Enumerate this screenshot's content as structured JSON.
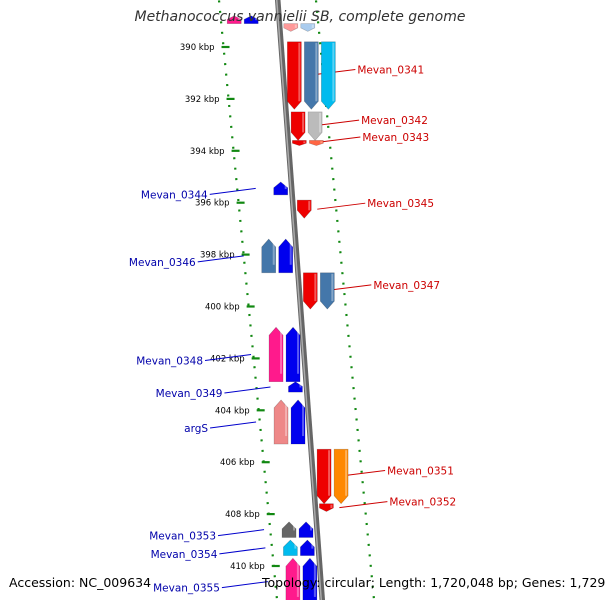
{
  "title": "Methanococcus vannielii SB, complete genome",
  "footer": {
    "accession": "Accession: NC_009634",
    "summary": "Topology: circular; Length: 1,720,048 bp; Genes: 1,729"
  },
  "scale": {
    "unit": "kbp",
    "ticks": [
      {
        "kbp": 390,
        "label": "390 kbp"
      },
      {
        "kbp": 392,
        "label": "392 kbp"
      },
      {
        "kbp": 394,
        "label": "394 kbp"
      },
      {
        "kbp": 396,
        "label": "396 kbp"
      },
      {
        "kbp": 398,
        "label": "398 kbp"
      },
      {
        "kbp": 400,
        "label": "400 kbp"
      },
      {
        "kbp": 402,
        "label": "402 kbp"
      },
      {
        "kbp": 404,
        "label": "404 kbp"
      },
      {
        "kbp": 406,
        "label": "406 kbp"
      },
      {
        "kbp": 408,
        "label": "408 kbp"
      },
      {
        "kbp": 410,
        "label": "410 kbp"
      }
    ]
  },
  "colors": {
    "backbone": "#888888",
    "dotted_guide": "#118811",
    "reverse_label": "#cc0000",
    "forward_label": "#0000aa",
    "leader_reverse": "#cc0000",
    "leader_forward": "#0000cc"
  },
  "genes": [
    {
      "label": "",
      "strand": "-",
      "start_kbp": 389.1,
      "end_kbp": 389.4,
      "color": "#ff9999",
      "offset": 1
    },
    {
      "label": "",
      "strand": "-",
      "start_kbp": 389.1,
      "end_kbp": 389.4,
      "color": "#aaccee",
      "offset": 2
    },
    {
      "label": "",
      "strand": "+",
      "start_kbp": 388.8,
      "end_kbp": 389.1,
      "color": "#ff1a8c",
      "offset": 3
    },
    {
      "label": "",
      "strand": "+",
      "start_kbp": 388.8,
      "end_kbp": 389.1,
      "color": "#0000ee",
      "offset": 2
    },
    {
      "label": "Mevan_0341",
      "strand": "-",
      "start_kbp": 389.8,
      "end_kbp": 392.4,
      "color": "#ee0000",
      "offset": 1
    },
    {
      "label": "",
      "strand": "-",
      "start_kbp": 389.8,
      "end_kbp": 392.4,
      "color": "#4477aa",
      "offset": 2
    },
    {
      "label": "",
      "strand": "-",
      "start_kbp": 389.8,
      "end_kbp": 392.4,
      "color": "#00bbee",
      "offset": 3
    },
    {
      "label": "Mevan_0342",
      "strand": "-",
      "start_kbp": 392.5,
      "end_kbp": 393.6,
      "color": "#ee0000",
      "offset": 1
    },
    {
      "label": "",
      "strand": "-",
      "start_kbp": 392.5,
      "end_kbp": 393.6,
      "color": "#bbbbbb",
      "offset": 2
    },
    {
      "label": "Mevan_0343",
      "strand": "-",
      "start_kbp": 393.6,
      "end_kbp": 393.8,
      "color": "#ee0000",
      "offset": 1
    },
    {
      "label": "",
      "strand": "-",
      "start_kbp": 393.6,
      "end_kbp": 393.8,
      "color": "#ff6644",
      "offset": 2
    },
    {
      "label": "Mevan_0344",
      "strand": "+",
      "start_kbp": 395.2,
      "end_kbp": 395.7,
      "color": "#0000ee",
      "offset": 1
    },
    {
      "label": "Mevan_0345",
      "strand": "-",
      "start_kbp": 395.9,
      "end_kbp": 396.6,
      "color": "#ee0000",
      "offset": 1
    },
    {
      "label": "Mevan_0346",
      "strand": "+",
      "start_kbp": 397.4,
      "end_kbp": 398.7,
      "color": "#4477aa",
      "offset": 2
    },
    {
      "label": "",
      "strand": "+",
      "start_kbp": 397.4,
      "end_kbp": 398.7,
      "color": "#0000ee",
      "offset": 1
    },
    {
      "label": "Mevan_0347",
      "strand": "-",
      "start_kbp": 398.7,
      "end_kbp": 400.1,
      "color": "#ee0000",
      "offset": 1
    },
    {
      "label": "",
      "strand": "-",
      "start_kbp": 398.7,
      "end_kbp": 400.1,
      "color": "#4477aa",
      "offset": 2
    },
    {
      "label": "Mevan_0348",
      "strand": "+",
      "start_kbp": 400.8,
      "end_kbp": 402.9,
      "color": "#ff1a8c",
      "offset": 2
    },
    {
      "label": "",
      "strand": "+",
      "start_kbp": 400.8,
      "end_kbp": 402.9,
      "color": "#0000ee",
      "offset": 1
    },
    {
      "label": "Mevan_0349",
      "strand": "+",
      "start_kbp": 402.9,
      "end_kbp": 403.3,
      "color": "#0000ee",
      "offset": 1
    },
    {
      "label": "argS",
      "strand": "+",
      "start_kbp": 403.6,
      "end_kbp": 405.3,
      "color": "#ee8888",
      "offset": 2
    },
    {
      "label": "",
      "strand": "+",
      "start_kbp": 403.6,
      "end_kbp": 405.3,
      "color": "#0000ee",
      "offset": 1
    },
    {
      "label": "Mevan_0351",
      "strand": "-",
      "start_kbp": 405.5,
      "end_kbp": 407.6,
      "color": "#ee0000",
      "offset": 1
    },
    {
      "label": "",
      "strand": "-",
      "start_kbp": 405.5,
      "end_kbp": 407.6,
      "color": "#ff8800",
      "offset": 2
    },
    {
      "label": "Mevan_0352",
      "strand": "-",
      "start_kbp": 407.6,
      "end_kbp": 407.9,
      "color": "#ee0000",
      "offset": 1
    },
    {
      "label": "Mevan_0353",
      "strand": "+",
      "start_kbp": 408.3,
      "end_kbp": 408.9,
      "color": "#666666",
      "offset": 2
    },
    {
      "label": "",
      "strand": "+",
      "start_kbp": 408.3,
      "end_kbp": 408.9,
      "color": "#0000ee",
      "offset": 1
    },
    {
      "label": "Mevan_0354",
      "strand": "+",
      "start_kbp": 409.0,
      "end_kbp": 409.6,
      "color": "#00bbee",
      "offset": 2
    },
    {
      "label": "",
      "strand": "+",
      "start_kbp": 409.0,
      "end_kbp": 409.6,
      "color": "#0000ee",
      "offset": 1
    },
    {
      "label": "Mevan_0355",
      "strand": "+",
      "start_kbp": 409.7,
      "end_kbp": 411.5,
      "color": "#ff1a8c",
      "offset": 2
    },
    {
      "label": "",
      "strand": "+",
      "start_kbp": 409.7,
      "end_kbp": 411.5,
      "color": "#0000ee",
      "offset": 1
    }
  ]
}
